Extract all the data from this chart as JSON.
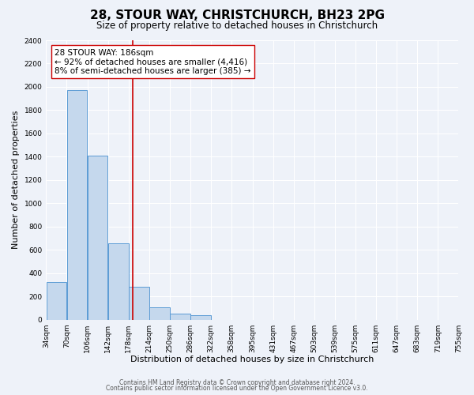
{
  "title1": "28, STOUR WAY, CHRISTCHURCH, BH23 2PG",
  "title2": "Size of property relative to detached houses in Christchurch",
  "xlabel": "Distribution of detached houses by size in Christchurch",
  "ylabel": "Number of detached properties",
  "bin_labels": [
    "34sqm",
    "70sqm",
    "106sqm",
    "142sqm",
    "178sqm",
    "214sqm",
    "250sqm",
    "286sqm",
    "322sqm",
    "358sqm",
    "395sqm",
    "431sqm",
    "467sqm",
    "503sqm",
    "539sqm",
    "575sqm",
    "611sqm",
    "647sqm",
    "683sqm",
    "719sqm",
    "755sqm"
  ],
  "bar_values": [
    325,
    1975,
    1410,
    655,
    280,
    105,
    50,
    35,
    0,
    0,
    0,
    0,
    0,
    0,
    0,
    0,
    0,
    0,
    0,
    0
  ],
  "bin_edges": [
    34,
    70,
    106,
    142,
    178,
    214,
    250,
    286,
    322,
    358,
    395,
    431,
    467,
    503,
    539,
    575,
    611,
    647,
    683,
    719,
    755
  ],
  "bar_color": "#c5d8ed",
  "bar_edge_color": "#5b9bd5",
  "property_size": 186,
  "vline_color": "#cc0000",
  "annotation_text1": "28 STOUR WAY: 186sqm",
  "annotation_text2": "← 92% of detached houses are smaller (4,416)",
  "annotation_text3": "8% of semi-detached houses are larger (385) →",
  "annotation_box_color": "#ffffff",
  "annotation_box_edge": "#cc0000",
  "ylim": [
    0,
    2400
  ],
  "yticks": [
    0,
    200,
    400,
    600,
    800,
    1000,
    1200,
    1400,
    1600,
    1800,
    2000,
    2200,
    2400
  ],
  "footer1": "Contains HM Land Registry data © Crown copyright and database right 2024.",
  "footer2": "Contains public sector information licensed under the Open Government Licence v3.0.",
  "bg_color": "#eef2f9",
  "plot_bg_color": "#eef2f9",
  "grid_color": "#ffffff",
  "title1_fontsize": 11,
  "title2_fontsize": 8.5,
  "xlabel_fontsize": 8,
  "ylabel_fontsize": 8,
  "tick_fontsize": 6.5,
  "annotation_fontsize": 7.5,
  "footer_fontsize": 5.5
}
